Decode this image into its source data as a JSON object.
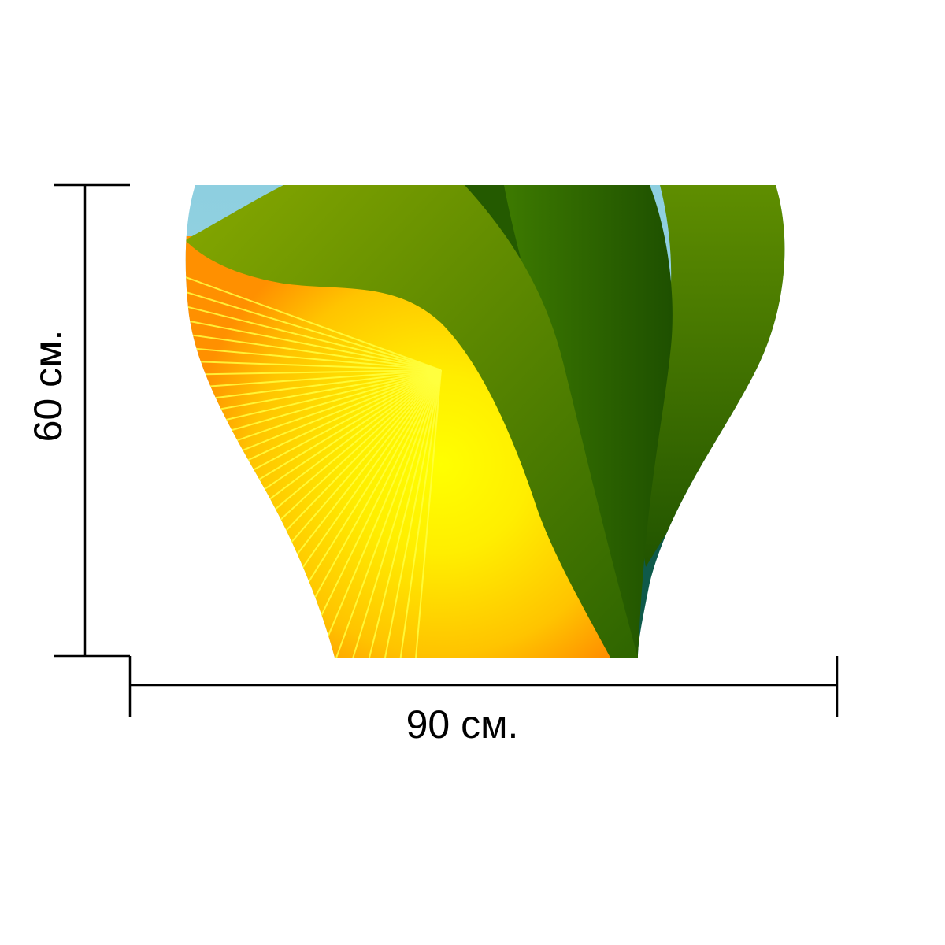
{
  "product": {
    "width_label": "90 см.",
    "height_label": "60 см."
  },
  "colors": {
    "dimension_lines": "#000000",
    "background": "#ffffff",
    "sky": "#8ecfe0",
    "sun_center": "#ffff00",
    "sun_edge": "#ff9000",
    "leaf_light": "#86a800",
    "leaf_dark": "#1f5200"
  }
}
